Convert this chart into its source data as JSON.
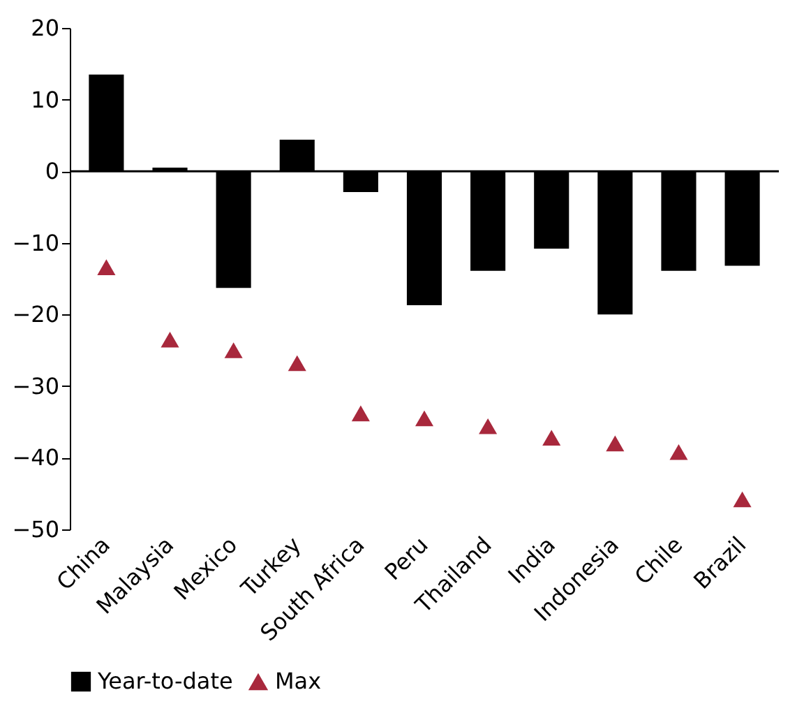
{
  "chart_data": {
    "type": "bar",
    "categories": [
      "China",
      "Malaysia",
      "Mexico",
      "Turkey",
      "South Africa",
      "Peru",
      "Thailand",
      "India",
      "Indonesia",
      "Chile",
      "Brazil"
    ],
    "series": [
      {
        "name": "Year-to-date",
        "color": "#000000",
        "values": [
          13.5,
          0.5,
          -16.3,
          4.4,
          -2.9,
          -18.7,
          -13.9,
          -10.8,
          -20,
          -13.9,
          -13.2
        ]
      },
      {
        "name": "Max",
        "color": "#a8283c",
        "type": "scatter",
        "marker": "triangle",
        "values": [
          -13.4,
          -23.5,
          -25,
          -26.8,
          -33.8,
          -34.5,
          -35.6,
          -37.2,
          -38,
          -39.2,
          -45.8
        ]
      }
    ],
    "ylim": [
      -50,
      20
    ],
    "yticks": [
      -50,
      -40,
      -30,
      -20,
      -10,
      0,
      10,
      20
    ],
    "grid": false,
    "legend": "bottom",
    "ref_lines": [
      {
        "axis": "y",
        "value": 0,
        "color": "#000000"
      }
    ]
  }
}
